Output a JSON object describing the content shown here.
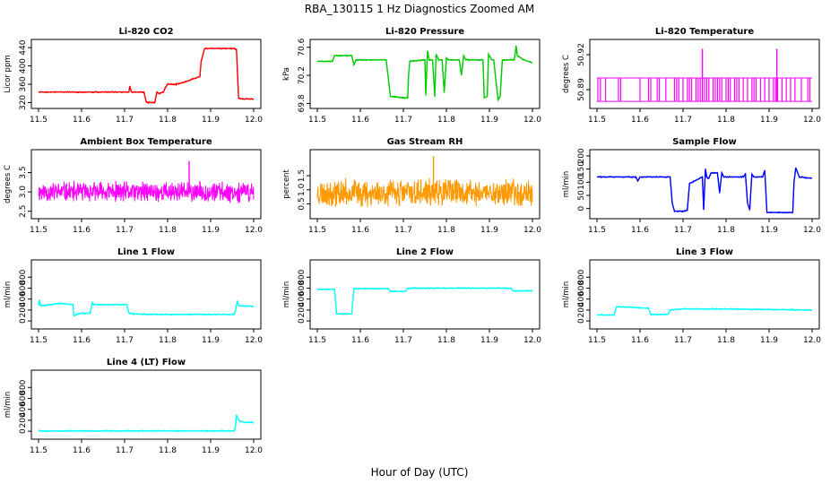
{
  "title": "RBA_130115  1 Hz Diagnostics Zoomed AM",
  "xlabel": "Hour of Day (UTC)",
  "chart_data": [
    {
      "id": "p0",
      "type": "line",
      "title": "Li-820 CO2",
      "ylabel": "Licor ppm",
      "color": "#ff0000",
      "xlim": [
        11.5,
        12.0
      ],
      "ylim": [
        315,
        450
      ],
      "xticks": [
        "11.5",
        "11.6",
        "11.7",
        "11.8",
        "11.9",
        "12.0"
      ],
      "yticks": [
        "320",
        "360",
        "400",
        "440"
      ],
      "x": [
        11.5,
        11.71,
        11.712,
        11.716,
        11.72,
        11.745,
        11.75,
        11.755,
        11.76,
        11.77,
        11.775,
        11.78,
        11.79,
        11.795,
        11.8,
        11.82,
        11.84,
        11.875,
        11.878,
        11.882,
        11.886,
        11.89,
        11.955,
        11.96,
        11.965,
        11.97,
        12.0
      ],
      "y": [
        343,
        343,
        356,
        343,
        343,
        343,
        322,
        320,
        320,
        320,
        343,
        340,
        343,
        353,
        360,
        360,
        365,
        377,
        410,
        425,
        438,
        438,
        438,
        436,
        330,
        328,
        328
      ]
    },
    {
      "id": "p1",
      "type": "line",
      "title": "Li-820 Pressure",
      "ylabel": "kPa",
      "color": "#00cc00",
      "xlim": [
        11.5,
        12.0
      ],
      "ylim": [
        69.78,
        70.66
      ],
      "xticks": [
        "11.5",
        "11.6",
        "11.7",
        "11.8",
        "11.9",
        "12.0"
      ],
      "yticks": [
        "69.8",
        "70.2",
        "70.6"
      ],
      "x": [
        11.5,
        11.535,
        11.54,
        11.58,
        11.585,
        11.59,
        11.65,
        11.66,
        11.67,
        11.7,
        11.71,
        11.712,
        11.715,
        11.75,
        11.752,
        11.756,
        11.76,
        11.768,
        11.773,
        11.776,
        11.782,
        11.79,
        11.795,
        11.8,
        11.805,
        11.83,
        11.835,
        11.84,
        11.845,
        11.85,
        11.885,
        11.888,
        11.895,
        11.898,
        11.905,
        11.91,
        11.92,
        11.925,
        11.93,
        11.958,
        11.962,
        11.965,
        11.98,
        12.0
      ],
      "y": [
        70.4,
        70.4,
        70.48,
        70.48,
        70.35,
        70.42,
        70.42,
        70.42,
        69.9,
        69.88,
        69.88,
        70.2,
        70.4,
        70.42,
        69.92,
        70.55,
        70.42,
        70.42,
        69.9,
        70.5,
        70.42,
        70.42,
        69.96,
        70.45,
        70.42,
        70.42,
        70.2,
        70.48,
        70.42,
        70.42,
        70.42,
        69.88,
        69.9,
        70.5,
        70.42,
        70.42,
        69.85,
        69.9,
        70.42,
        70.42,
        70.62,
        70.48,
        70.42,
        70.38
      ]
    },
    {
      "id": "p2",
      "type": "line",
      "title": "Li-820 Temperature",
      "ylabel": "degrees C",
      "color": "#ff00ff",
      "xlim": [
        11.5,
        12.0
      ],
      "ylim": [
        50.877,
        50.93
      ],
      "xticks": [
        "11.5",
        "11.6",
        "11.7",
        "11.8",
        "11.9",
        "12.0"
      ],
      "yticks": [
        "50.89",
        "50.92"
      ],
      "spikes": {
        "low": 50.88,
        "high": 50.9,
        "x": [
          11.502,
          11.508,
          11.52,
          11.55,
          11.555,
          11.6,
          11.62,
          11.625,
          11.64,
          11.645,
          11.66,
          11.68,
          11.685,
          11.69,
          11.7,
          11.71,
          11.715,
          11.72,
          11.73,
          11.735,
          11.74,
          11.745,
          11.75,
          11.755,
          11.76,
          11.77,
          11.775,
          11.78,
          11.785,
          11.79,
          11.8,
          11.805,
          11.81,
          11.82,
          11.825,
          11.83,
          11.84,
          11.85,
          11.86,
          11.865,
          11.87,
          11.88,
          11.89,
          11.9,
          11.91,
          11.915,
          11.92,
          11.93,
          11.94,
          11.95,
          11.96,
          11.975,
          11.99,
          11.995
        ]
      },
      "peaks": {
        "x": [
          11.745,
          11.918
        ],
        "y": [
          50.925,
          50.925
        ]
      }
    },
    {
      "id": "p3",
      "type": "line",
      "title": "Ambient Box Temperature",
      "ylabel": "degrees C",
      "color": "#ff00ff",
      "xlim": [
        11.5,
        12.0
      ],
      "ylim": [
        2.4,
        4.0
      ],
      "xticks": [
        "11.5",
        "11.6",
        "11.7",
        "11.8",
        "11.9",
        "12.0"
      ],
      "yticks": [
        "2.5",
        "3.0",
        "3.5"
      ],
      "noise": {
        "base": 3.0,
        "amp": 0.3,
        "seed": 11,
        "n": 700
      },
      "peaks": {
        "x": [
          11.85
        ],
        "y": [
          3.8
        ]
      }
    },
    {
      "id": "p4",
      "type": "line",
      "title": "Gas Stream RH",
      "ylabel": "percent",
      "color": "#ff9900",
      "xlim": [
        11.5,
        12.0
      ],
      "ylim": [
        0.1,
        2.3
      ],
      "xticks": [
        "11.5",
        "11.6",
        "11.7",
        "11.8",
        "11.9",
        "12.0"
      ],
      "yticks": [
        "0.5",
        "1.0",
        "1.5"
      ],
      "noise": {
        "base": 0.9,
        "amp": 0.55,
        "seed": 23,
        "n": 700
      },
      "peaks": {
        "x": [
          11.77
        ],
        "y": [
          2.2
        ]
      }
    },
    {
      "id": "p5",
      "type": "line",
      "title": "Sample Flow",
      "ylabel": "ml/min",
      "color": "#0000ff",
      "xlim": [
        11.5,
        12.0
      ],
      "ylim": [
        -25,
        210
      ],
      "xticks": [
        "11.5",
        "11.6",
        "11.7",
        "11.8",
        "11.9",
        "12.0"
      ],
      "yticks": [
        "0",
        "50",
        "100",
        "150",
        "200"
      ],
      "x": [
        11.5,
        11.59,
        11.595,
        11.6,
        11.67,
        11.675,
        11.68,
        11.7,
        11.705,
        11.71,
        11.715,
        11.745,
        11.748,
        11.752,
        11.755,
        11.758,
        11.76,
        11.765,
        11.78,
        11.785,
        11.79,
        11.795,
        11.84,
        11.845,
        11.85,
        11.855,
        11.86,
        11.865,
        11.885,
        11.89,
        11.895,
        11.9,
        11.955,
        11.958,
        11.962,
        11.97,
        12.0
      ],
      "y": [
        120,
        120,
        105,
        120,
        120,
        20,
        -10,
        -10,
        -10,
        -5,
        95,
        120,
        -5,
        150,
        120,
        115,
        115,
        135,
        135,
        60,
        135,
        120,
        120,
        130,
        20,
        -5,
        130,
        120,
        120,
        145,
        -15,
        -15,
        -15,
        100,
        155,
        120,
        115
      ]
    },
    {
      "id": "p6",
      "type": "line",
      "title": "Line 1 Flow",
      "ylabel": "ml/min",
      "color": "#00ffff",
      "xlim": [
        11.5,
        12.0
      ],
      "ylim": [
        -80,
        1050
      ],
      "xticks": [
        "11.5",
        "11.6",
        "11.7",
        "11.8",
        "11.9",
        "12.0"
      ],
      "yticks": [
        "0",
        "200",
        "400",
        "600",
        "800"
      ],
      "x": [
        11.5,
        11.502,
        11.505,
        11.55,
        11.555,
        11.58,
        11.582,
        11.59,
        11.6,
        11.62,
        11.625,
        11.628,
        11.63,
        11.705,
        11.71,
        11.72,
        11.75,
        11.955,
        11.958,
        11.962,
        11.965,
        12.0
      ],
      "y": [
        280,
        380,
        280,
        320,
        320,
        300,
        100,
        120,
        140,
        140,
        340,
        300,
        300,
        300,
        150,
        130,
        120,
        120,
        200,
        360,
        280,
        270
      ]
    },
    {
      "id": "p7",
      "type": "line",
      "title": "Line 2 Flow",
      "ylabel": "ml/min",
      "color": "#00ffff",
      "xlim": [
        11.5,
        12.0
      ],
      "ylim": [
        -80,
        1050
      ],
      "xticks": [
        "11.5",
        "11.6",
        "11.7",
        "11.8",
        "11.9",
        "12.0"
      ],
      "yticks": [
        "0",
        "200",
        "400",
        "600",
        "800"
      ],
      "x": [
        11.5,
        11.54,
        11.545,
        11.58,
        11.585,
        11.665,
        11.67,
        11.705,
        11.71,
        11.95,
        11.955,
        12.0
      ],
      "y": [
        580,
        580,
        130,
        130,
        590,
        590,
        540,
        540,
        600,
        600,
        550,
        550
      ]
    },
    {
      "id": "p8",
      "type": "line",
      "title": "Line 3 Flow",
      "ylabel": "ml/min",
      "color": "#00ffff",
      "xlim": [
        11.5,
        12.0
      ],
      "ylim": [
        -80,
        1050
      ],
      "xticks": [
        "11.5",
        "11.6",
        "11.7",
        "11.8",
        "11.9",
        "12.0"
      ],
      "yticks": [
        "0",
        "200",
        "400",
        "600",
        "800"
      ],
      "x": [
        11.5,
        11.54,
        11.545,
        11.58,
        11.62,
        11.625,
        11.665,
        11.67,
        11.68,
        11.7,
        11.8,
        12.0
      ],
      "y": [
        110,
        110,
        260,
        250,
        230,
        120,
        120,
        200,
        210,
        220,
        220,
        200
      ]
    },
    {
      "id": "p9",
      "type": "line",
      "title": "Line 4 (LT) Flow",
      "ylabel": "ml/min",
      "color": "#00ffff",
      "xlim": [
        11.5,
        12.0
      ],
      "ylim": [
        -80,
        1050
      ],
      "xticks": [
        "11.5",
        "11.6",
        "11.7",
        "11.8",
        "11.9",
        "12.0"
      ],
      "yticks": [
        "0",
        "200",
        "400",
        "600",
        "800"
      ],
      "x": [
        11.5,
        11.955,
        11.958,
        11.96,
        11.962,
        11.965,
        11.97,
        11.98,
        12.0
      ],
      "y": [
        5,
        5,
        100,
        300,
        250,
        200,
        180,
        160,
        160
      ]
    }
  ]
}
